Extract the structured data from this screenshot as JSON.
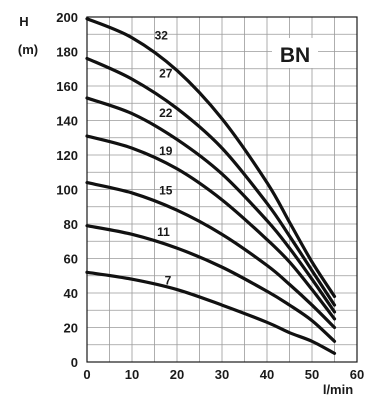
{
  "chart_data": {
    "type": "line",
    "title": "BN",
    "ylabel_symbol": "H",
    "ylabel_unit": "(m)",
    "xlabel": "l/min",
    "xlim": [
      0,
      60
    ],
    "ylim": [
      0,
      200
    ],
    "x_ticks": [
      "0",
      "10",
      "20",
      "30",
      "40",
      "50",
      "60"
    ],
    "y_ticks": [
      "0",
      "20",
      "40",
      "60",
      "80",
      "100",
      "120",
      "140",
      "160",
      "180",
      "200"
    ],
    "x_grid_step": 5,
    "y_grid_step": 10,
    "grid": true,
    "colors": {
      "curve": "#111111",
      "grid": "#9a9a9a",
      "frame": "#1a1a1a"
    },
    "series": [
      {
        "name": "32",
        "label_at": [
          16.5,
          187
        ],
        "x": [
          0,
          10,
          20,
          30,
          40,
          45,
          50,
          55
        ],
        "y": [
          199,
          188,
          169,
          141,
          104,
          81,
          58,
          38
        ]
      },
      {
        "name": "27",
        "label_at": [
          17.5,
          165
        ],
        "x": [
          0,
          10,
          20,
          30,
          40,
          45,
          50,
          55
        ],
        "y": [
          176,
          164,
          147,
          124,
          92,
          73,
          53,
          33
        ]
      },
      {
        "name": "22",
        "label_at": [
          17.5,
          142
        ],
        "x": [
          0,
          10,
          20,
          30,
          40,
          45,
          50,
          55
        ],
        "y": [
          153,
          144,
          129,
          109,
          82,
          66,
          48,
          29
        ]
      },
      {
        "name": "19",
        "label_at": [
          17.5,
          120
        ],
        "x": [
          0,
          10,
          20,
          30,
          40,
          45,
          50,
          55
        ],
        "y": [
          131,
          124,
          112,
          94,
          71,
          58,
          42,
          25
        ]
      },
      {
        "name": "15",
        "label_at": [
          17.5,
          97
        ],
        "x": [
          0,
          10,
          20,
          30,
          40,
          45,
          50,
          55
        ],
        "y": [
          104,
          98,
          88,
          74,
          56,
          45,
          33,
          20
        ]
      },
      {
        "name": "11",
        "label_at": [
          17.0,
          73
        ],
        "x": [
          0,
          10,
          20,
          30,
          40,
          45,
          50,
          55
        ],
        "y": [
          79,
          74,
          66,
          55,
          41,
          33,
          24,
          12
        ]
      },
      {
        "name": "7",
        "label_at": [
          18.0,
          45
        ],
        "x": [
          0,
          10,
          20,
          30,
          40,
          45,
          50,
          55
        ],
        "y": [
          52,
          48,
          42,
          33,
          23,
          17,
          12,
          5
        ]
      }
    ]
  }
}
